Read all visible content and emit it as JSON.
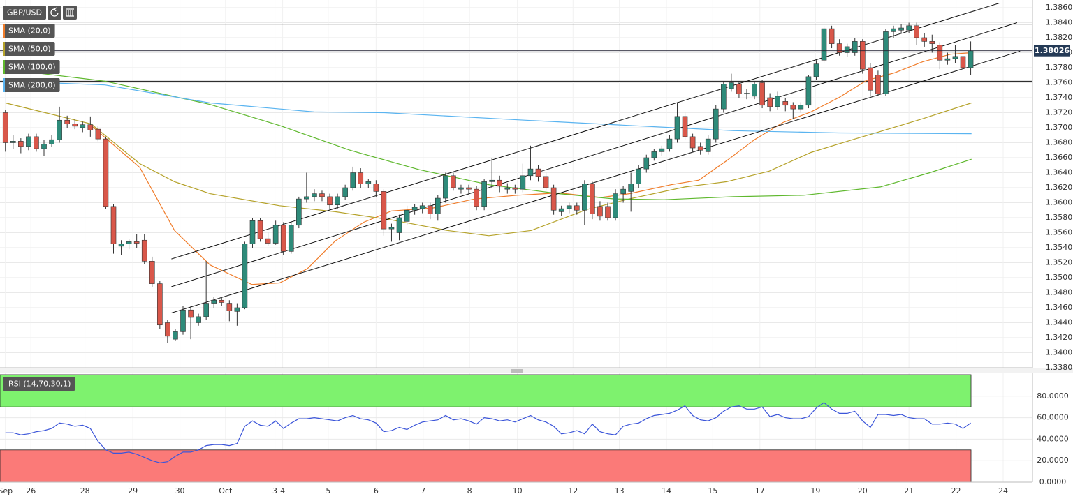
{
  "chart_data": [
    {
      "type": "candlestick",
      "symbol": "GBP/USD",
      "open": [
        1.372,
        1.368,
        1.3682,
        1.3675,
        1.3688,
        1.3672,
        1.3678,
        1.3684,
        1.371,
        1.3705,
        1.37,
        1.3704,
        1.3698,
        1.3685,
        1.3595,
        1.3542,
        1.3545,
        1.3548,
        1.355,
        1.3522,
        1.3492,
        1.344,
        1.3418,
        1.3428,
        1.3457,
        1.344,
        1.3448,
        1.3466,
        1.347,
        1.3466,
        1.3455,
        1.346,
        1.3545,
        1.3576,
        1.3552,
        1.3546,
        1.357,
        1.3535,
        1.357,
        1.3605,
        1.3608,
        1.3612,
        1.3608,
        1.3597,
        1.3608,
        1.362,
        1.364,
        1.3625,
        1.3625,
        1.3615,
        1.3565,
        1.356,
        1.3575,
        1.359,
        1.3592,
        1.3596,
        1.3585,
        1.3606,
        1.3636,
        1.3618,
        1.362,
        1.3618,
        1.3595,
        1.3628,
        1.363,
        1.3618,
        1.362,
        1.3618,
        1.3636,
        1.3645,
        1.3635,
        1.362,
        1.3588,
        1.3592,
        1.3596,
        1.359,
        1.3625,
        1.3595,
        1.3595,
        1.358,
        1.3612,
        1.3615,
        1.3625,
        1.3645,
        1.366,
        1.3668,
        1.3672,
        1.3685,
        1.3715,
        1.3688,
        1.3675,
        1.3668,
        1.3685,
        1.3725,
        1.3752,
        1.3758,
        1.3745,
        1.3742,
        1.376,
        1.374,
        1.3728,
        1.3735,
        1.373,
        1.3725,
        1.373,
        1.3768,
        1.379,
        1.3832,
        1.3812,
        1.38,
        1.38,
        1.3815,
        1.378,
        1.377,
        1.3745,
        1.3828,
        1.383,
        1.383,
        1.3836,
        1.382,
        1.3815,
        1.381,
        1.379,
        1.3792,
        1.3795,
        1.378
      ],
      "high": [
        1.3724,
        1.369,
        1.3686,
        1.3692,
        1.3692,
        1.3684,
        1.369,
        1.3728,
        1.3716,
        1.3712,
        1.3708,
        1.3715,
        1.3702,
        1.3688,
        1.3598,
        1.355,
        1.3552,
        1.3558,
        1.3558,
        1.3528,
        1.3496,
        1.3444,
        1.3432,
        1.3462,
        1.3462,
        1.3452,
        1.3522,
        1.3474,
        1.3474,
        1.347,
        1.3466,
        1.3548,
        1.358,
        1.358,
        1.356,
        1.3576,
        1.3574,
        1.3575,
        1.3608,
        1.364,
        1.3618,
        1.3616,
        1.3612,
        1.3612,
        1.3624,
        1.3648,
        1.3646,
        1.3632,
        1.363,
        1.3618,
        1.3572,
        1.3584,
        1.3596,
        1.3598,
        1.36,
        1.36,
        1.361,
        1.364,
        1.364,
        1.3624,
        1.3624,
        1.3622,
        1.3632,
        1.366,
        1.3636,
        1.3626,
        1.3624,
        1.3652,
        1.3676,
        1.365,
        1.364,
        1.3624,
        1.3596,
        1.36,
        1.36,
        1.363,
        1.3628,
        1.3602,
        1.36,
        1.3618,
        1.3622,
        1.364,
        1.365,
        1.3664,
        1.3672,
        1.3676,
        1.369,
        1.3734,
        1.372,
        1.3692,
        1.368,
        1.369,
        1.373,
        1.3762,
        1.3772,
        1.3762,
        1.3752,
        1.3762,
        1.3764,
        1.3746,
        1.3748,
        1.374,
        1.3734,
        1.3734,
        1.377,
        1.379,
        1.3836,
        1.3836,
        1.3818,
        1.3812,
        1.382,
        1.3818,
        1.3786,
        1.3776,
        1.3832,
        1.3836,
        1.3838,
        1.384,
        1.384,
        1.3826,
        1.3824,
        1.3814,
        1.38,
        1.381,
        1.38,
        1.3815
      ],
      "low": [
        1.3668,
        1.3672,
        1.3666,
        1.367,
        1.3668,
        1.3662,
        1.3674,
        1.368,
        1.37,
        1.3698,
        1.3694,
        1.3688,
        1.3682,
        1.3592,
        1.3532,
        1.353,
        1.3538,
        1.354,
        1.3518,
        1.3488,
        1.3432,
        1.3413,
        1.3416,
        1.3424,
        1.3418,
        1.3436,
        1.3444,
        1.346,
        1.3462,
        1.3442,
        1.3436,
        1.3458,
        1.354,
        1.3548,
        1.3542,
        1.3544,
        1.353,
        1.3532,
        1.3566,
        1.36,
        1.3602,
        1.3602,
        1.359,
        1.3592,
        1.3604,
        1.3616,
        1.362,
        1.362,
        1.3608,
        1.3556,
        1.3548,
        1.355,
        1.357,
        1.3584,
        1.3586,
        1.3578,
        1.3576,
        1.36,
        1.3616,
        1.3612,
        1.361,
        1.359,
        1.359,
        1.362,
        1.3614,
        1.3612,
        1.3612,
        1.3614,
        1.363,
        1.3628,
        1.3616,
        1.3584,
        1.3582,
        1.3586,
        1.3584,
        1.357,
        1.3578,
        1.3576,
        1.3576,
        1.3576,
        1.36,
        1.3588,
        1.362,
        1.364,
        1.3656,
        1.3662,
        1.3668,
        1.368,
        1.3684,
        1.3668,
        1.3664,
        1.3664,
        1.368,
        1.372,
        1.3748,
        1.374,
        1.3738,
        1.3738,
        1.3726,
        1.3722,
        1.3724,
        1.3722,
        1.3712,
        1.372,
        1.3726,
        1.3764,
        1.3786,
        1.3806,
        1.3796,
        1.3794,
        1.3796,
        1.3772,
        1.3742,
        1.3742,
        1.3742,
        1.382,
        1.3826,
        1.3826,
        1.381,
        1.3808,
        1.38,
        1.3778,
        1.3784,
        1.3786,
        1.3772,
        1.377
      ],
      "close": [
        1.368,
        1.3682,
        1.3675,
        1.3688,
        1.3672,
        1.3678,
        1.3684,
        1.371,
        1.3705,
        1.3702,
        1.3704,
        1.3697,
        1.3685,
        1.3595,
        1.3545,
        1.3545,
        1.3548,
        1.3546,
        1.3522,
        1.3492,
        1.3437,
        1.3422,
        1.3428,
        1.3457,
        1.3447,
        1.3448,
        1.3466,
        1.347,
        1.3467,
        1.3456,
        1.346,
        1.3545,
        1.3576,
        1.3552,
        1.3546,
        1.357,
        1.3535,
        1.357,
        1.3605,
        1.3608,
        1.3612,
        1.3608,
        1.3597,
        1.3608,
        1.362,
        1.364,
        1.3625,
        1.3628,
        1.3615,
        1.3565,
        1.3567,
        1.358,
        1.359,
        1.3594,
        1.3596,
        1.3585,
        1.3606,
        1.3636,
        1.362,
        1.362,
        1.3618,
        1.3595,
        1.3628,
        1.363,
        1.3622,
        1.362,
        1.3618,
        1.3636,
        1.3645,
        1.3635,
        1.362,
        1.359,
        1.3592,
        1.3596,
        1.359,
        1.3625,
        1.3585,
        1.3582,
        1.358,
        1.3612,
        1.3618,
        1.3625,
        1.3645,
        1.366,
        1.3668,
        1.3672,
        1.3685,
        1.3715,
        1.3688,
        1.3673,
        1.367,
        1.3685,
        1.3725,
        1.3758,
        1.376,
        1.3745,
        1.3746,
        1.3758,
        1.373,
        1.3728,
        1.3742,
        1.373,
        1.3725,
        1.373,
        1.3768,
        1.3785,
        1.3832,
        1.3812,
        1.38,
        1.3808,
        1.3815,
        1.3778,
        1.375,
        1.3745,
        1.3828,
        1.3832,
        1.3833,
        1.3836,
        1.382,
        1.3815,
        1.3812,
        1.379,
        1.3792,
        1.3795,
        1.378,
        1.38026
      ],
      "up_color": "#2e8b7a",
      "down_color": "#d9574a",
      "xlim": [
        -0.7,
        133
      ],
      "xticks": [
        {
          "value": 0,
          "label": "Sep"
        },
        {
          "value": 3.3,
          "label": "26"
        },
        {
          "value": 10.3,
          "label": "28"
        },
        {
          "value": 16.5,
          "label": "29"
        },
        {
          "value": 22.6,
          "label": "30"
        },
        {
          "value": 28.5,
          "label": "Oct"
        },
        {
          "value": 34.9,
          "label": "3"
        },
        {
          "value": 35.9,
          "label": "4"
        },
        {
          "value": 41.8,
          "label": "5"
        },
        {
          "value": 48,
          "label": "6"
        },
        {
          "value": 54.1,
          "label": "7"
        },
        {
          "value": 60.1,
          "label": "8"
        },
        {
          "value": 66.3,
          "label": "10"
        },
        {
          "value": 73.5,
          "label": "12"
        },
        {
          "value": 79.5,
          "label": "13"
        },
        {
          "value": 85.6,
          "label": "14"
        },
        {
          "value": 91.6,
          "label": "15"
        },
        {
          "value": 97.7,
          "label": "17"
        },
        {
          "value": 104.9,
          "label": "19"
        },
        {
          "value": 111,
          "label": "20"
        },
        {
          "value": 117,
          "label": "21"
        },
        {
          "value": 123.1,
          "label": "22"
        },
        {
          "value": 129.2,
          "label": "24"
        }
      ],
      "ylim": [
        1.338,
        1.386
      ],
      "yticks": [
        {
          "value": 1.338,
          "label": "1.3380"
        },
        {
          "value": 1.34,
          "label": "1.3400"
        },
        {
          "value": 1.342,
          "label": "1.3420"
        },
        {
          "value": 1.344,
          "label": "1.3440"
        },
        {
          "value": 1.346,
          "label": "1.3460"
        },
        {
          "value": 1.348,
          "label": "1.3480"
        },
        {
          "value": 1.35,
          "label": "1.3500"
        },
        {
          "value": 1.352,
          "label": "1.3520"
        },
        {
          "value": 1.354,
          "label": "1.3540"
        },
        {
          "value": 1.356,
          "label": "1.3560"
        },
        {
          "value": 1.358,
          "label": "1.3580"
        },
        {
          "value": 1.36,
          "label": "1.3600"
        },
        {
          "value": 1.362,
          "label": "1.3620"
        },
        {
          "value": 1.364,
          "label": "1.3640"
        },
        {
          "value": 1.366,
          "label": "1.3660"
        },
        {
          "value": 1.368,
          "label": "1.3680"
        },
        {
          "value": 1.37,
          "label": "1.3700"
        },
        {
          "value": 1.372,
          "label": "1.3720"
        },
        {
          "value": 1.374,
          "label": "1.3740"
        },
        {
          "value": 1.376,
          "label": "1.3760"
        },
        {
          "value": 1.378,
          "label": "1.3780"
        },
        {
          "value": 1.38,
          "label": "1.3800"
        },
        {
          "value": 1.382,
          "label": "1.3820"
        },
        {
          "value": 1.384,
          "label": "1.3840"
        },
        {
          "value": 1.386,
          "label": "1.3860"
        }
      ],
      "grid": true,
      "last_price": 1.38026,
      "series": [
        {
          "name": "SMA (20,0)",
          "color": "#f07c2a",
          "x": [
            11.1,
            17.4,
            21.9,
            26.5,
            31.9,
            35.5,
            39.1,
            42.7,
            46.4,
            50,
            55.4,
            60.8,
            66.3,
            71.7,
            77.1,
            80.8,
            86.2,
            89.8,
            93.4,
            97,
            100.7,
            104.3,
            107.9,
            111.5,
            115.1,
            118.8,
            122.4,
            125.1
          ],
          "values": [
            1.3703,
            1.3647,
            1.3563,
            1.3517,
            1.3491,
            1.3493,
            1.3512,
            1.3549,
            1.3574,
            1.3589,
            1.3593,
            1.3605,
            1.361,
            1.3613,
            1.3607,
            1.3612,
            1.3624,
            1.363,
            1.3656,
            1.3684,
            1.3707,
            1.3721,
            1.374,
            1.3763,
            1.3773,
            1.3788,
            1.3798,
            1.38
          ]
        },
        {
          "name": "SMA (50,0)",
          "color": "#b5a22a",
          "x": [
            0,
            11.1,
            17.4,
            21.9,
            26.5,
            35.5,
            42.7,
            50,
            57.2,
            62.6,
            68.1,
            75.3,
            80.8,
            88,
            93.4,
            98.9,
            104.3,
            109.7,
            113.3,
            118.8,
            125.1
          ],
          "values": [
            1.3733,
            1.3705,
            1.3652,
            1.3628,
            1.3612,
            1.3596,
            1.3588,
            1.3577,
            1.3563,
            1.3556,
            1.3563,
            1.3591,
            1.3605,
            1.3621,
            1.3628,
            1.3642,
            1.3667,
            1.3684,
            1.3695,
            1.3712,
            1.3733
          ]
        },
        {
          "name": "SMA (100,0)",
          "color": "#5fb82e",
          "x": [
            0,
            12.9,
            26.5,
            35.5,
            44.6,
            53.6,
            62.6,
            71.7,
            78.9,
            85.3,
            94.3,
            103.4,
            113.3,
            119.7,
            125.1
          ],
          "values": [
            1.3778,
            1.3762,
            1.3731,
            1.3703,
            1.367,
            1.3644,
            1.3624,
            1.3612,
            1.3605,
            1.3604,
            1.3608,
            1.361,
            1.3621,
            1.364,
            1.3658
          ]
        },
        {
          "name": "SMA (200,0)",
          "color": "#5ab4f0",
          "x": [
            0,
            12.9,
            26.5,
            40,
            49.1,
            67.2,
            80.8,
            94.3,
            107.9,
            125.1
          ],
          "values": [
            1.3762,
            1.3757,
            1.3733,
            1.3721,
            1.372,
            1.371,
            1.3703,
            1.3696,
            1.3693,
            1.3692
          ]
        }
      ],
      "levels": [
        1.3838,
        1.3762
      ],
      "channel": [
        {
          "x": [
            21.5,
            131.4
          ],
          "values": [
            1.3453,
            1.3802
          ]
        },
        {
          "x": [
            21.5,
            131
          ],
          "values": [
            1.3488,
            1.384
          ]
        },
        {
          "x": [
            21.5,
            128.7
          ],
          "values": [
            1.3525,
            1.3866
          ]
        }
      ]
    },
    {
      "type": "line",
      "title": "RSI (14,70,30,1)",
      "color": "#3b55d9",
      "values": [
        46,
        46,
        44,
        45,
        47,
        48,
        50,
        55,
        54,
        52,
        53,
        50,
        38,
        30,
        27,
        27,
        28,
        26,
        23,
        20,
        18,
        19,
        24,
        28,
        28,
        30,
        34,
        35,
        35,
        34,
        36,
        52,
        57,
        53,
        52,
        57,
        50,
        55,
        59,
        59,
        60,
        59,
        58,
        57,
        60,
        62,
        59,
        58,
        55,
        47,
        48,
        51,
        49,
        53,
        56,
        57,
        58,
        62,
        58,
        59,
        57,
        54,
        60,
        59,
        57,
        58,
        56,
        59,
        62,
        58,
        56,
        52,
        45,
        46,
        48,
        45,
        54,
        47,
        45,
        44,
        52,
        54,
        55,
        59,
        62,
        63,
        64,
        67,
        71,
        62,
        58,
        57,
        60,
        66,
        70,
        71,
        68,
        68,
        70,
        61,
        63,
        60,
        59,
        59,
        61,
        69,
        74,
        68,
        64,
        64,
        66,
        57,
        51,
        63,
        63,
        62,
        63,
        60,
        59,
        59,
        54,
        54,
        55,
        54,
        50,
        55
      ],
      "ylim": [
        0,
        100
      ],
      "yticks": [
        {
          "value": 0,
          "label": "0.0000"
        },
        {
          "value": 20,
          "label": "20.0000"
        },
        {
          "value": 40,
          "label": "40.0000"
        },
        {
          "value": 60,
          "label": "60.0000"
        },
        {
          "value": 80,
          "label": "80.0000"
        }
      ],
      "zones": [
        {
          "from": 70,
          "to": 100,
          "color": "#7ef26e"
        },
        {
          "from": 0,
          "to": 30,
          "color": "#fb7a78"
        }
      ]
    }
  ]
}
